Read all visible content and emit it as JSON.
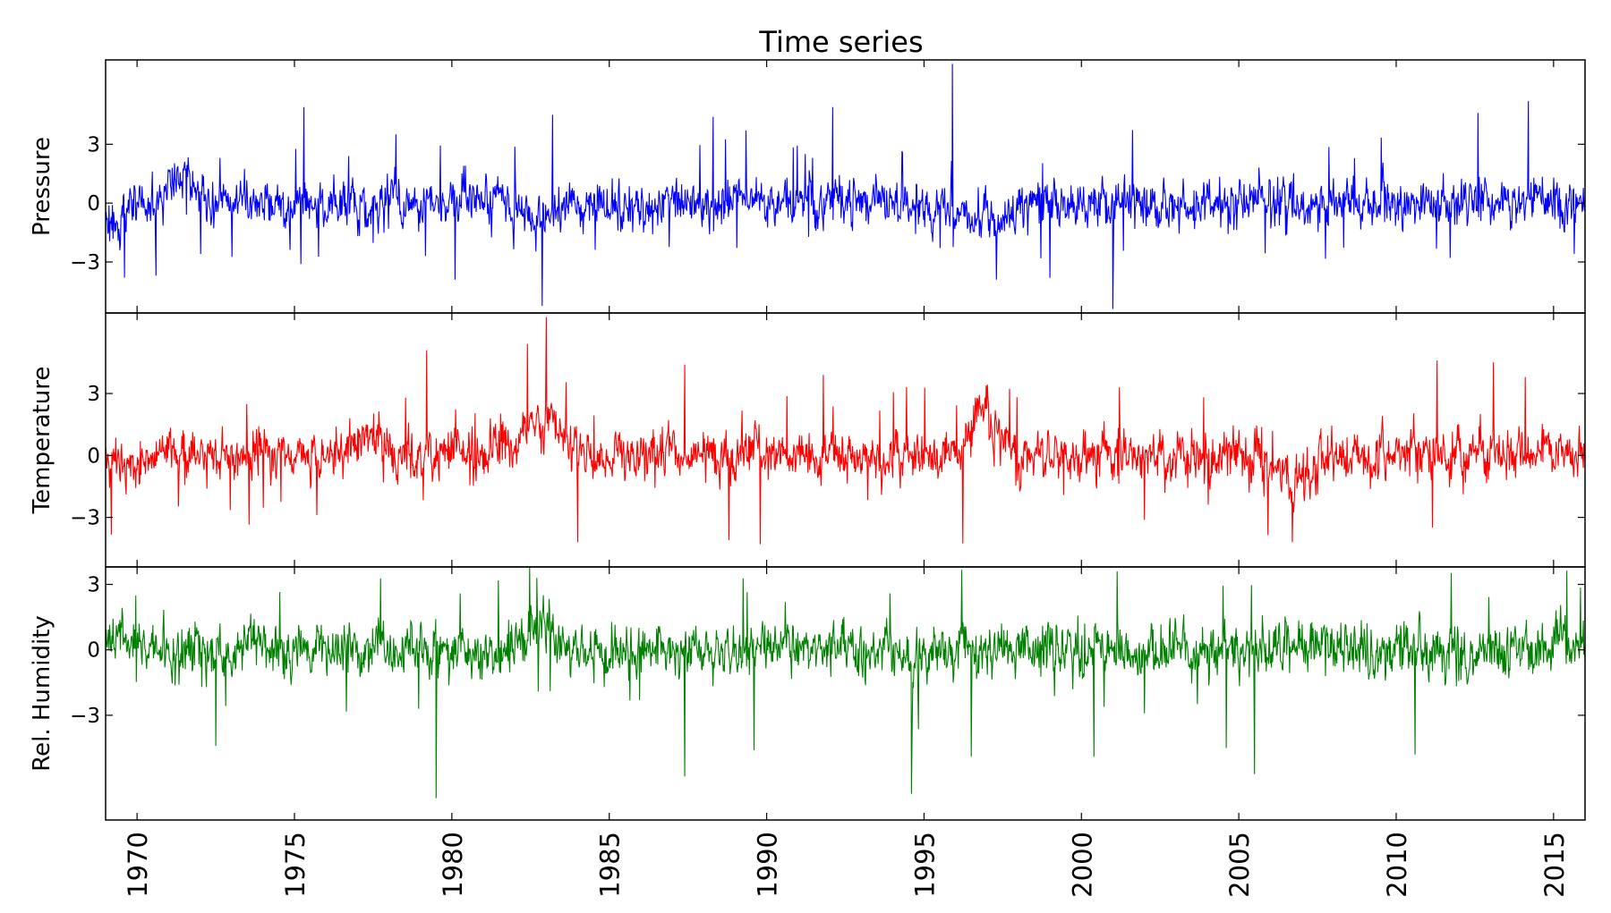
{
  "chart_data": {
    "type": "line",
    "title": "Time series",
    "x_start": 1969.0,
    "x_end": 2016.0,
    "xticks": [
      1970,
      1975,
      1980,
      1985,
      1990,
      1995,
      2000,
      2005,
      2010,
      2015
    ],
    "xtick_labels": [
      "1970",
      "1975",
      "1980",
      "1985",
      "1990",
      "1995",
      "2000",
      "2005",
      "2010",
      "2015"
    ],
    "grid": false,
    "panels": [
      {
        "name": "Pressure",
        "ylabel": "Pressure",
        "color": "#0000ff",
        "ylim": [
          -5.6,
          7.3
        ],
        "yticks": [
          3,
          0,
          -3
        ],
        "ytick_labels": [
          "3",
          "0",
          "−3"
        ],
        "anomalies": [
          {
            "x": 1971.4,
            "y": 1.5,
            "width": 0.6
          },
          {
            "x": 1969.2,
            "y": -1.2,
            "width": 0.4
          },
          {
            "x": 1982.8,
            "y": -0.8,
            "width": 0.8
          },
          {
            "x": 1996.9,
            "y": -0.8,
            "width": 0.7
          }
        ],
        "spikes": [
          {
            "x": 1975.3,
            "y": 4.9
          },
          {
            "x": 1983.2,
            "y": 4.5
          },
          {
            "x": 1988.3,
            "y": 4.4
          },
          {
            "x": 1992.1,
            "y": 4.9
          },
          {
            "x": 1995.9,
            "y": 7.1
          },
          {
            "x": 2001.0,
            "y": -5.4
          },
          {
            "x": 1980.1,
            "y": -3.9
          },
          {
            "x": 1997.3,
            "y": -3.9
          },
          {
            "x": 2012.6,
            "y": 4.6
          },
          {
            "x": 2014.2,
            "y": 5.2
          },
          {
            "x": 1969.6,
            "y": -3.8
          },
          {
            "x": 1970.6,
            "y": -3.7
          }
        ]
      },
      {
        "name": "Temperature",
        "ylabel": "Temperature",
        "color": "#ff0000",
        "ylim": [
          -5.4,
          6.9
        ],
        "yticks": [
          3,
          0,
          -3
        ],
        "ytick_labels": [
          "3",
          "0",
          "−3"
        ],
        "anomalies": [
          {
            "x": 1982.8,
            "y": 1.9,
            "width": 0.8
          },
          {
            "x": 1996.9,
            "y": 1.9,
            "width": 0.7
          },
          {
            "x": 1977.3,
            "y": 1.0,
            "width": 0.8
          },
          {
            "x": 2006.8,
            "y": -1.2,
            "width": 0.8
          },
          {
            "x": 1969.5,
            "y": -0.6,
            "width": 0.6
          }
        ],
        "spikes": [
          {
            "x": 1983.0,
            "y": 6.7
          },
          {
            "x": 1982.4,
            "y": 5.4
          },
          {
            "x": 1979.2,
            "y": 5.1
          },
          {
            "x": 1987.4,
            "y": 4.4
          },
          {
            "x": 1991.8,
            "y": 3.9
          },
          {
            "x": 2011.3,
            "y": 4.6
          },
          {
            "x": 2014.1,
            "y": 3.8
          },
          {
            "x": 1989.8,
            "y": -4.3
          },
          {
            "x": 1984.0,
            "y": -4.2
          },
          {
            "x": 2006.7,
            "y": -4.2
          },
          {
            "x": 1988.8,
            "y": -4.1
          }
        ]
      },
      {
        "name": "Rel. Humidity",
        "ylabel": "Rel. Humidity",
        "color": "#008000",
        "ylim": [
          -7.8,
          3.8
        ],
        "yticks": [
          3,
          0,
          -3
        ],
        "ytick_labels": [
          "3",
          "0",
          "−3"
        ],
        "anomalies": [
          {
            "x": 1982.7,
            "y": 1.0,
            "width": 0.6
          },
          {
            "x": 1969.3,
            "y": 0.6,
            "width": 0.5
          }
        ],
        "spikes": [
          {
            "x": 1979.5,
            "y": -6.8
          },
          {
            "x": 1994.6,
            "y": -6.6
          },
          {
            "x": 1987.4,
            "y": -5.8
          },
          {
            "x": 2010.6,
            "y": -4.8
          },
          {
            "x": 2005.5,
            "y": -5.7
          },
          {
            "x": 1972.5,
            "y": -4.4
          },
          {
            "x": 2000.4,
            "y": -4.9
          },
          {
            "x": 1996.5,
            "y": -4.9
          },
          {
            "x": 1982.7,
            "y": 3.3
          },
          {
            "x": 1989.6,
            "y": -4.6
          },
          {
            "x": 2004.6,
            "y": -4.5
          }
        ]
      }
    ]
  }
}
